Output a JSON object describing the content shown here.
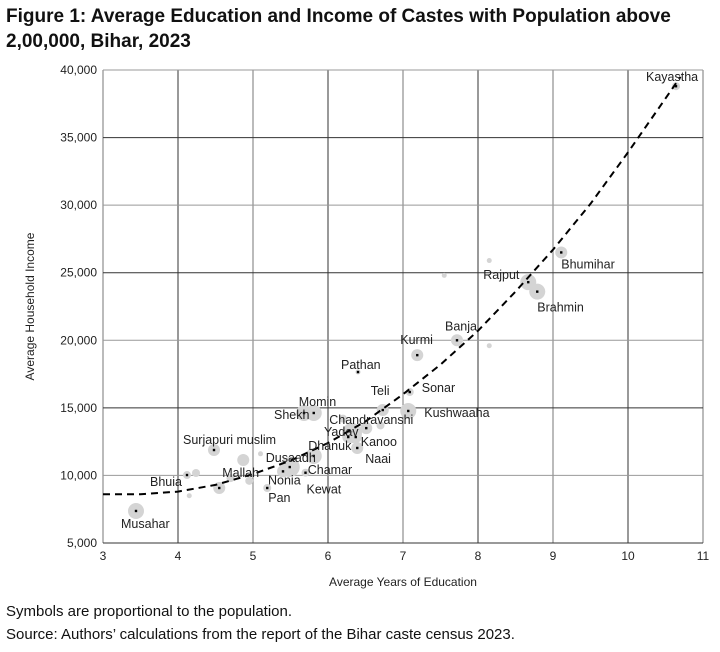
{
  "chart_data": {
    "type": "scatter",
    "title": "Figure 1: Average Education and Income of Castes with Population above 2,00,000, Bihar, 2023",
    "xlabel": "Average Years of Education",
    "ylabel": "Average Household Income",
    "xlim": [
      3,
      11
    ],
    "ylim": [
      5000,
      40000
    ],
    "xticks": [
      "3",
      "4",
      "5",
      "6",
      "7",
      "8",
      "9",
      "10",
      "11"
    ],
    "yticks": [
      "5,000",
      "10,000",
      "15,000",
      "20,000",
      "25,000",
      "30,000",
      "35,000",
      "40,000"
    ],
    "grid": true,
    "marker_color": "#d4d4d4",
    "trend_color": "#000000",
    "points": [
      {
        "name": "Kayastha",
        "x": 10.64,
        "y": 38800,
        "size": "small"
      },
      {
        "name": "Bhumihar",
        "x": 9.11,
        "y": 26500,
        "size": "medium"
      },
      {
        "name": "Rajput",
        "x": 8.67,
        "y": 24300,
        "size": "large"
      },
      {
        "name": "Brahmin",
        "x": 8.79,
        "y": 23600,
        "size": "large"
      },
      {
        "name": "Banja",
        "x": 7.72,
        "y": 20000,
        "size": "medium"
      },
      {
        "name": "Kurmi",
        "x": 7.19,
        "y": 18900,
        "size": "medium"
      },
      {
        "name": "Pathan",
        "x": 6.4,
        "y": 17650,
        "size": "tiny"
      },
      {
        "name": "Sonar",
        "x": 7.09,
        "y": 16170,
        "size": "small"
      },
      {
        "name": "Teli",
        "x": 6.73,
        "y": 14840,
        "size": "medium"
      },
      {
        "name": "Kushwaaha",
        "x": 7.07,
        "y": 14770,
        "size": "large"
      },
      {
        "name": "Momin",
        "x": 5.81,
        "y": 14620,
        "size": "large"
      },
      {
        "name": "Shekh",
        "x": 5.68,
        "y": 14620,
        "size": "large"
      },
      {
        "name": "Chandravanshi",
        "x": 6.51,
        "y": 13500,
        "size": "medium"
      },
      {
        "name": "Yadav",
        "x": 6.32,
        "y": 13140,
        "size": "xlarge"
      },
      {
        "name": "Kanoo",
        "x": 6.37,
        "y": 12840,
        "size": "medium"
      },
      {
        "name": "Dhanuk",
        "x": 6.27,
        "y": 12840,
        "size": "medium"
      },
      {
        "name": "Naai",
        "x": 6.39,
        "y": 12030,
        "size": "medium"
      },
      {
        "name": "Dusaadh",
        "x": 5.81,
        "y": 11440,
        "size": "large"
      },
      {
        "name": "Chamar",
        "x": 5.49,
        "y": 10620,
        "size": "xlarge"
      },
      {
        "name": "Nonia",
        "x": 5.4,
        "y": 10300,
        "size": "medium"
      },
      {
        "name": "Kewat",
        "x": 5.7,
        "y": 10200,
        "size": "small"
      },
      {
        "name": "Pan",
        "x": 5.19,
        "y": 9070,
        "size": "small"
      },
      {
        "name": "Mallah",
        "x": 4.55,
        "y": 9070,
        "size": "medium"
      },
      {
        "name": "Surjapuri muslim",
        "x": 4.48,
        "y": 11880,
        "size": "medium"
      },
      {
        "name": "Bhuia",
        "x": 4.12,
        "y": 10030,
        "size": "small"
      },
      {
        "name": "Musahar",
        "x": 3.44,
        "y": 7370,
        "size": "large"
      },
      {
        "name": "",
        "x": 4.87,
        "y": 11140,
        "size": "medium"
      },
      {
        "name": "",
        "x": 4.24,
        "y": 10180,
        "size": "small"
      },
      {
        "name": "",
        "x": 4.7,
        "y": 9800,
        "size": "small"
      },
      {
        "name": "",
        "x": 4.95,
        "y": 9600,
        "size": "small"
      },
      {
        "name": "",
        "x": 5.1,
        "y": 11600,
        "size": "tiny"
      },
      {
        "name": "",
        "x": 6.2,
        "y": 14200,
        "size": "small"
      },
      {
        "name": "",
        "x": 6.7,
        "y": 13700,
        "size": "small"
      },
      {
        "name": "",
        "x": 8.15,
        "y": 25900,
        "size": "tiny"
      },
      {
        "name": "",
        "x": 8.15,
        "y": 19600,
        "size": "tiny"
      },
      {
        "name": "",
        "x": 7.55,
        "y": 24800,
        "size": "tiny"
      },
      {
        "name": "",
        "x": 4.15,
        "y": 8500,
        "size": "tiny"
      }
    ],
    "trendline": {
      "type": "polynomial",
      "x": [
        3,
        3.5,
        4,
        4.5,
        5,
        5.5,
        6,
        6.5,
        7,
        7.5,
        8,
        8.5,
        9,
        9.5,
        10,
        10.5,
        10.7
      ],
      "y": [
        8600,
        8600,
        8800,
        9300,
        10100,
        11100,
        12400,
        14000,
        16000,
        18200,
        20700,
        23600,
        26700,
        30100,
        33900,
        37900,
        39500
      ]
    }
  },
  "notes": {
    "line1": "Symbols are proportional to the population.",
    "line2": "Source: Authors’ calculations from the report of the Bihar caste census 2023."
  }
}
